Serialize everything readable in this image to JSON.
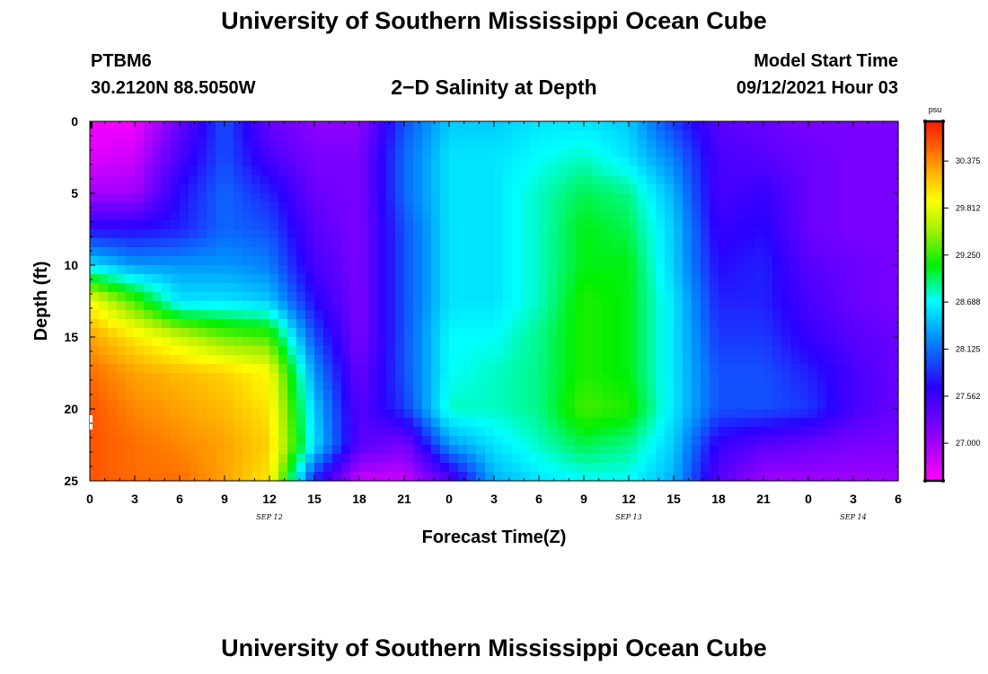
{
  "header": {
    "main_title": "University of Southern Mississippi Ocean Cube",
    "station_id": "PTBM6",
    "station_coords": "30.2120N  88.5050W",
    "plot_title": "2−D Salinity at Depth",
    "start_label": "Model Start Time",
    "start_time": "09/12/2021 Hour 03"
  },
  "footer": {
    "title": "University of Southern Mississippi Ocean Cube"
  },
  "chart_data": {
    "type": "heatmap",
    "title": "2−D Salinity at Depth",
    "xlabel": "Forecast Time(Z)",
    "ylabel": "Depth (ft)",
    "x_ticks": [
      "0",
      "3",
      "6",
      "9",
      "12",
      "15",
      "18",
      "21",
      "0",
      "3",
      "6",
      "9",
      "12",
      "15",
      "18",
      "21",
      "0",
      "3",
      "6"
    ],
    "x_dates": [
      {
        "label": "SEP 12",
        "tick_index": 4
      },
      {
        "label": "SEP 13",
        "tick_index": 12
      },
      {
        "label": "SEP 14",
        "tick_index": 17
      }
    ],
    "y_ticks": [
      0,
      5,
      10,
      15,
      20,
      25
    ],
    "ylim": [
      0,
      25
    ],
    "x_range_hours": [
      0,
      54
    ],
    "colorbar": {
      "unit": "psu",
      "labels": [
        30.375,
        29.812,
        29.25,
        28.688,
        28.125,
        27.562,
        27.0
      ],
      "min": 26.55,
      "max": 30.85
    },
    "hours": [
      0,
      3,
      6,
      9,
      12,
      15,
      18,
      21,
      24,
      27,
      30,
      33,
      36,
      39,
      42,
      45,
      48,
      51,
      54
    ],
    "depths": [
      0,
      2.5,
      5,
      7.5,
      10,
      12.5,
      15,
      17.5,
      20,
      22.5,
      25
    ],
    "salinity": [
      [
        26.6,
        26.6,
        27.3,
        28.0,
        27.3,
        27.1,
        27.1,
        28.0,
        28.5,
        28.5,
        28.6,
        28.6,
        28.5,
        27.9,
        27.4,
        27.3,
        27.2,
        27.2,
        27.2
      ],
      [
        26.7,
        26.8,
        27.5,
        28.0,
        27.5,
        27.2,
        27.2,
        28.1,
        28.6,
        28.6,
        28.7,
        28.8,
        28.6,
        28.2,
        27.5,
        27.4,
        27.3,
        27.2,
        27.2
      ],
      [
        27.0,
        27.0,
        27.7,
        28.1,
        27.8,
        27.3,
        27.2,
        28.1,
        28.6,
        28.6,
        28.8,
        29.0,
        28.9,
        28.4,
        27.5,
        27.6,
        27.3,
        27.2,
        27.2
      ],
      [
        27.7,
        27.7,
        27.8,
        28.1,
        28.0,
        27.4,
        27.2,
        28.0,
        28.6,
        28.6,
        28.8,
        29.1,
        29.0,
        28.5,
        27.6,
        27.7,
        27.3,
        27.2,
        27.2
      ],
      [
        28.6,
        28.3,
        28.3,
        28.3,
        28.2,
        27.5,
        27.2,
        28.0,
        28.6,
        28.6,
        28.8,
        29.1,
        29.1,
        28.5,
        27.7,
        27.8,
        27.4,
        27.3,
        27.2
      ],
      [
        29.9,
        29.3,
        28.6,
        28.6,
        28.5,
        27.7,
        27.2,
        28.0,
        28.6,
        28.6,
        28.8,
        29.2,
        29.1,
        28.6,
        27.8,
        27.8,
        27.5,
        27.3,
        27.2
      ],
      [
        30.3,
        30.0,
        29.7,
        29.4,
        29.3,
        28.0,
        27.2,
        28.0,
        28.7,
        28.7,
        28.9,
        29.2,
        29.1,
        28.6,
        27.9,
        27.9,
        27.6,
        27.4,
        27.3
      ],
      [
        30.5,
        30.3,
        30.2,
        30.1,
        29.9,
        28.3,
        27.3,
        28.0,
        28.7,
        28.8,
        28.9,
        29.2,
        29.1,
        28.6,
        28.0,
        28.0,
        27.8,
        27.5,
        27.3
      ],
      [
        30.6,
        30.4,
        30.3,
        30.2,
        30.0,
        28.5,
        27.4,
        27.9,
        28.8,
        28.8,
        28.9,
        29.3,
        29.2,
        28.6,
        28.0,
        28.0,
        27.9,
        27.5,
        27.3
      ],
      [
        30.6,
        30.5,
        30.4,
        30.3,
        30.1,
        28.6,
        27.4,
        27.2,
        28.3,
        28.6,
        28.8,
        29.0,
        28.9,
        28.5,
        27.6,
        27.4,
        27.3,
        27.2,
        27.2
      ],
      [
        30.6,
        30.5,
        30.5,
        30.3,
        30.0,
        27.8,
        26.8,
        26.8,
        27.4,
        28.4,
        28.6,
        28.7,
        28.7,
        28.4,
        27.4,
        27.0,
        27.0,
        27.0,
        27.0
      ]
    ]
  }
}
